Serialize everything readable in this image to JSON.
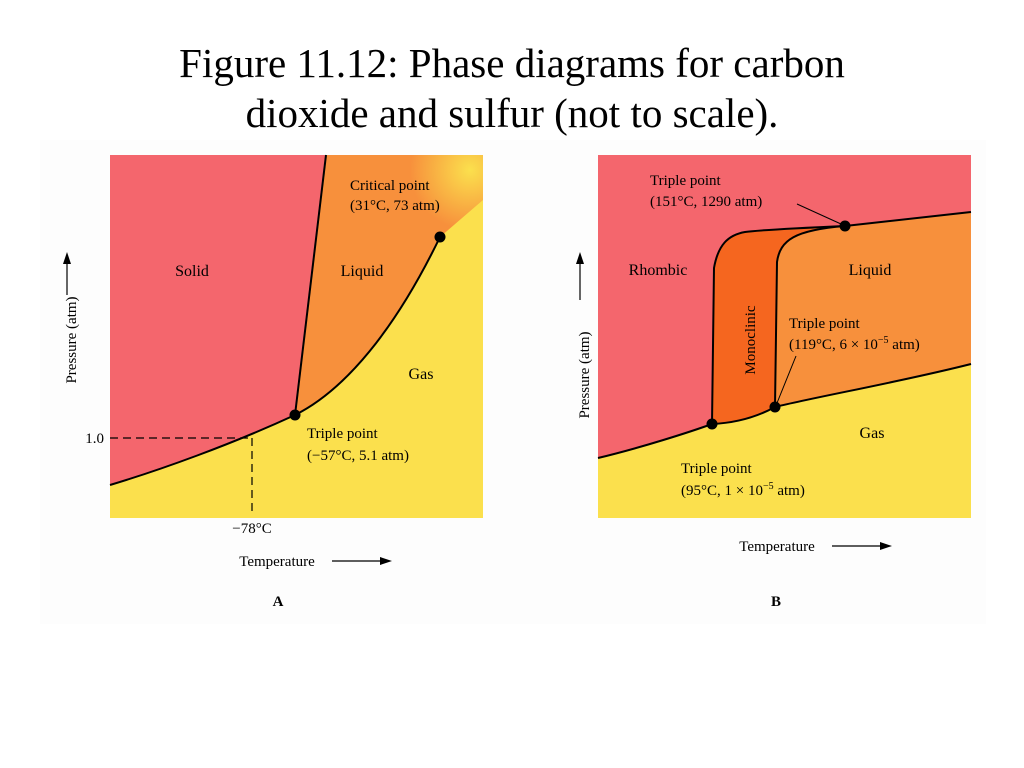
{
  "title": {
    "line1": "Figure 11.12: Phase diagrams for carbon",
    "line2": "dioxide and sulfur (not to scale)."
  },
  "colors": {
    "solid": "#f4666d",
    "liquid": "#f7903c",
    "gas": "#fbe04d",
    "monoclinic": "#f5661f"
  },
  "diagram_a": {
    "caption": "A",
    "y_axis_label": "Pressure (atm)",
    "x_axis_label": "Temperature",
    "regions": {
      "solid": "Solid",
      "liquid": "Liquid",
      "gas": "Gas"
    },
    "critical_point": {
      "line1": "Critical point",
      "line2": "(31°C, 73 atm)"
    },
    "triple_point": {
      "line1": "Triple point",
      "line2": "(−57°C, 5.1 atm)"
    },
    "pressure_tick": "1.0",
    "temperature_tick": "−78°C"
  },
  "diagram_b": {
    "caption": "B",
    "y_axis_label": "Pressure (atm)",
    "x_axis_label": "Temperature",
    "regions": {
      "rhombic": "Rhombic",
      "liquid": "Liquid",
      "gas": "Gas",
      "monoclinic": "Monoclinic"
    },
    "triple_point_top": {
      "line1": "Triple point",
      "line2": "(151°C, 1290 atm)"
    },
    "triple_point_mid": {
      "line1": "Triple point",
      "line2_prefix": "(119°C, 6 × 10",
      "line2_exp": "−5",
      "line2_suffix": " atm)"
    },
    "triple_point_low": {
      "line1": "Triple point",
      "line2_prefix": "(95°C, 1 × 10",
      "line2_exp": "−5",
      "line2_suffix": " atm)"
    }
  }
}
